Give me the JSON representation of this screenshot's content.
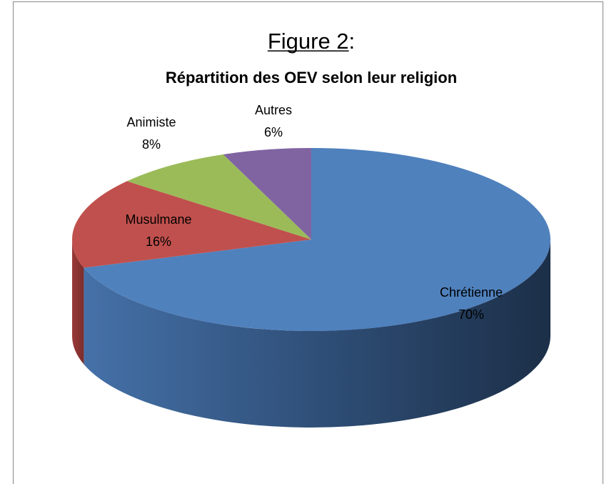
{
  "chart_data": {
    "type": "pie3d",
    "title": "Figure 2:",
    "subtitle": "Répartition des OEV selon leur religion",
    "categories": [
      "Chrétienne",
      "Musulmane",
      "Animiste",
      "Autres"
    ],
    "values": [
      70,
      16,
      8,
      6
    ],
    "value_labels": [
      "70%",
      "16%",
      "8%",
      "6%"
    ],
    "colors": [
      "#4f81bd",
      "#c0504d",
      "#9bbb59",
      "#8064a2"
    ]
  }
}
